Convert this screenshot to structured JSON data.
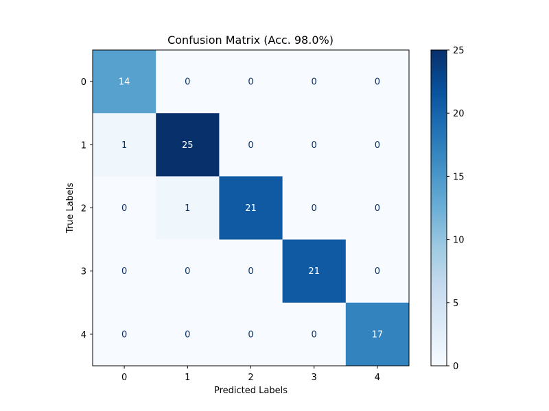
{
  "chart_data": {
    "type": "heatmap",
    "title": "Confusion Matrix (Acc. 98.0%)",
    "xlabel": "Predicted Labels",
    "ylabel": "True Labels",
    "x_categories": [
      "0",
      "1",
      "2",
      "3",
      "4"
    ],
    "y_categories": [
      "0",
      "1",
      "2",
      "3",
      "4"
    ],
    "values": [
      [
        14,
        0,
        0,
        0,
        0
      ],
      [
        1,
        25,
        0,
        0,
        0
      ],
      [
        0,
        1,
        21,
        0,
        0
      ],
      [
        0,
        0,
        0,
        21,
        0
      ],
      [
        0,
        0,
        0,
        0,
        17
      ]
    ],
    "colorbar": {
      "range": [
        0,
        25
      ],
      "ticks": [
        0,
        5,
        10,
        15,
        20,
        25
      ]
    },
    "colormap": "Blues",
    "colors": {
      "low": "#f7fbff",
      "high": "#08306b",
      "text_light": "#ffffff",
      "text_dark": "#08306b"
    }
  }
}
